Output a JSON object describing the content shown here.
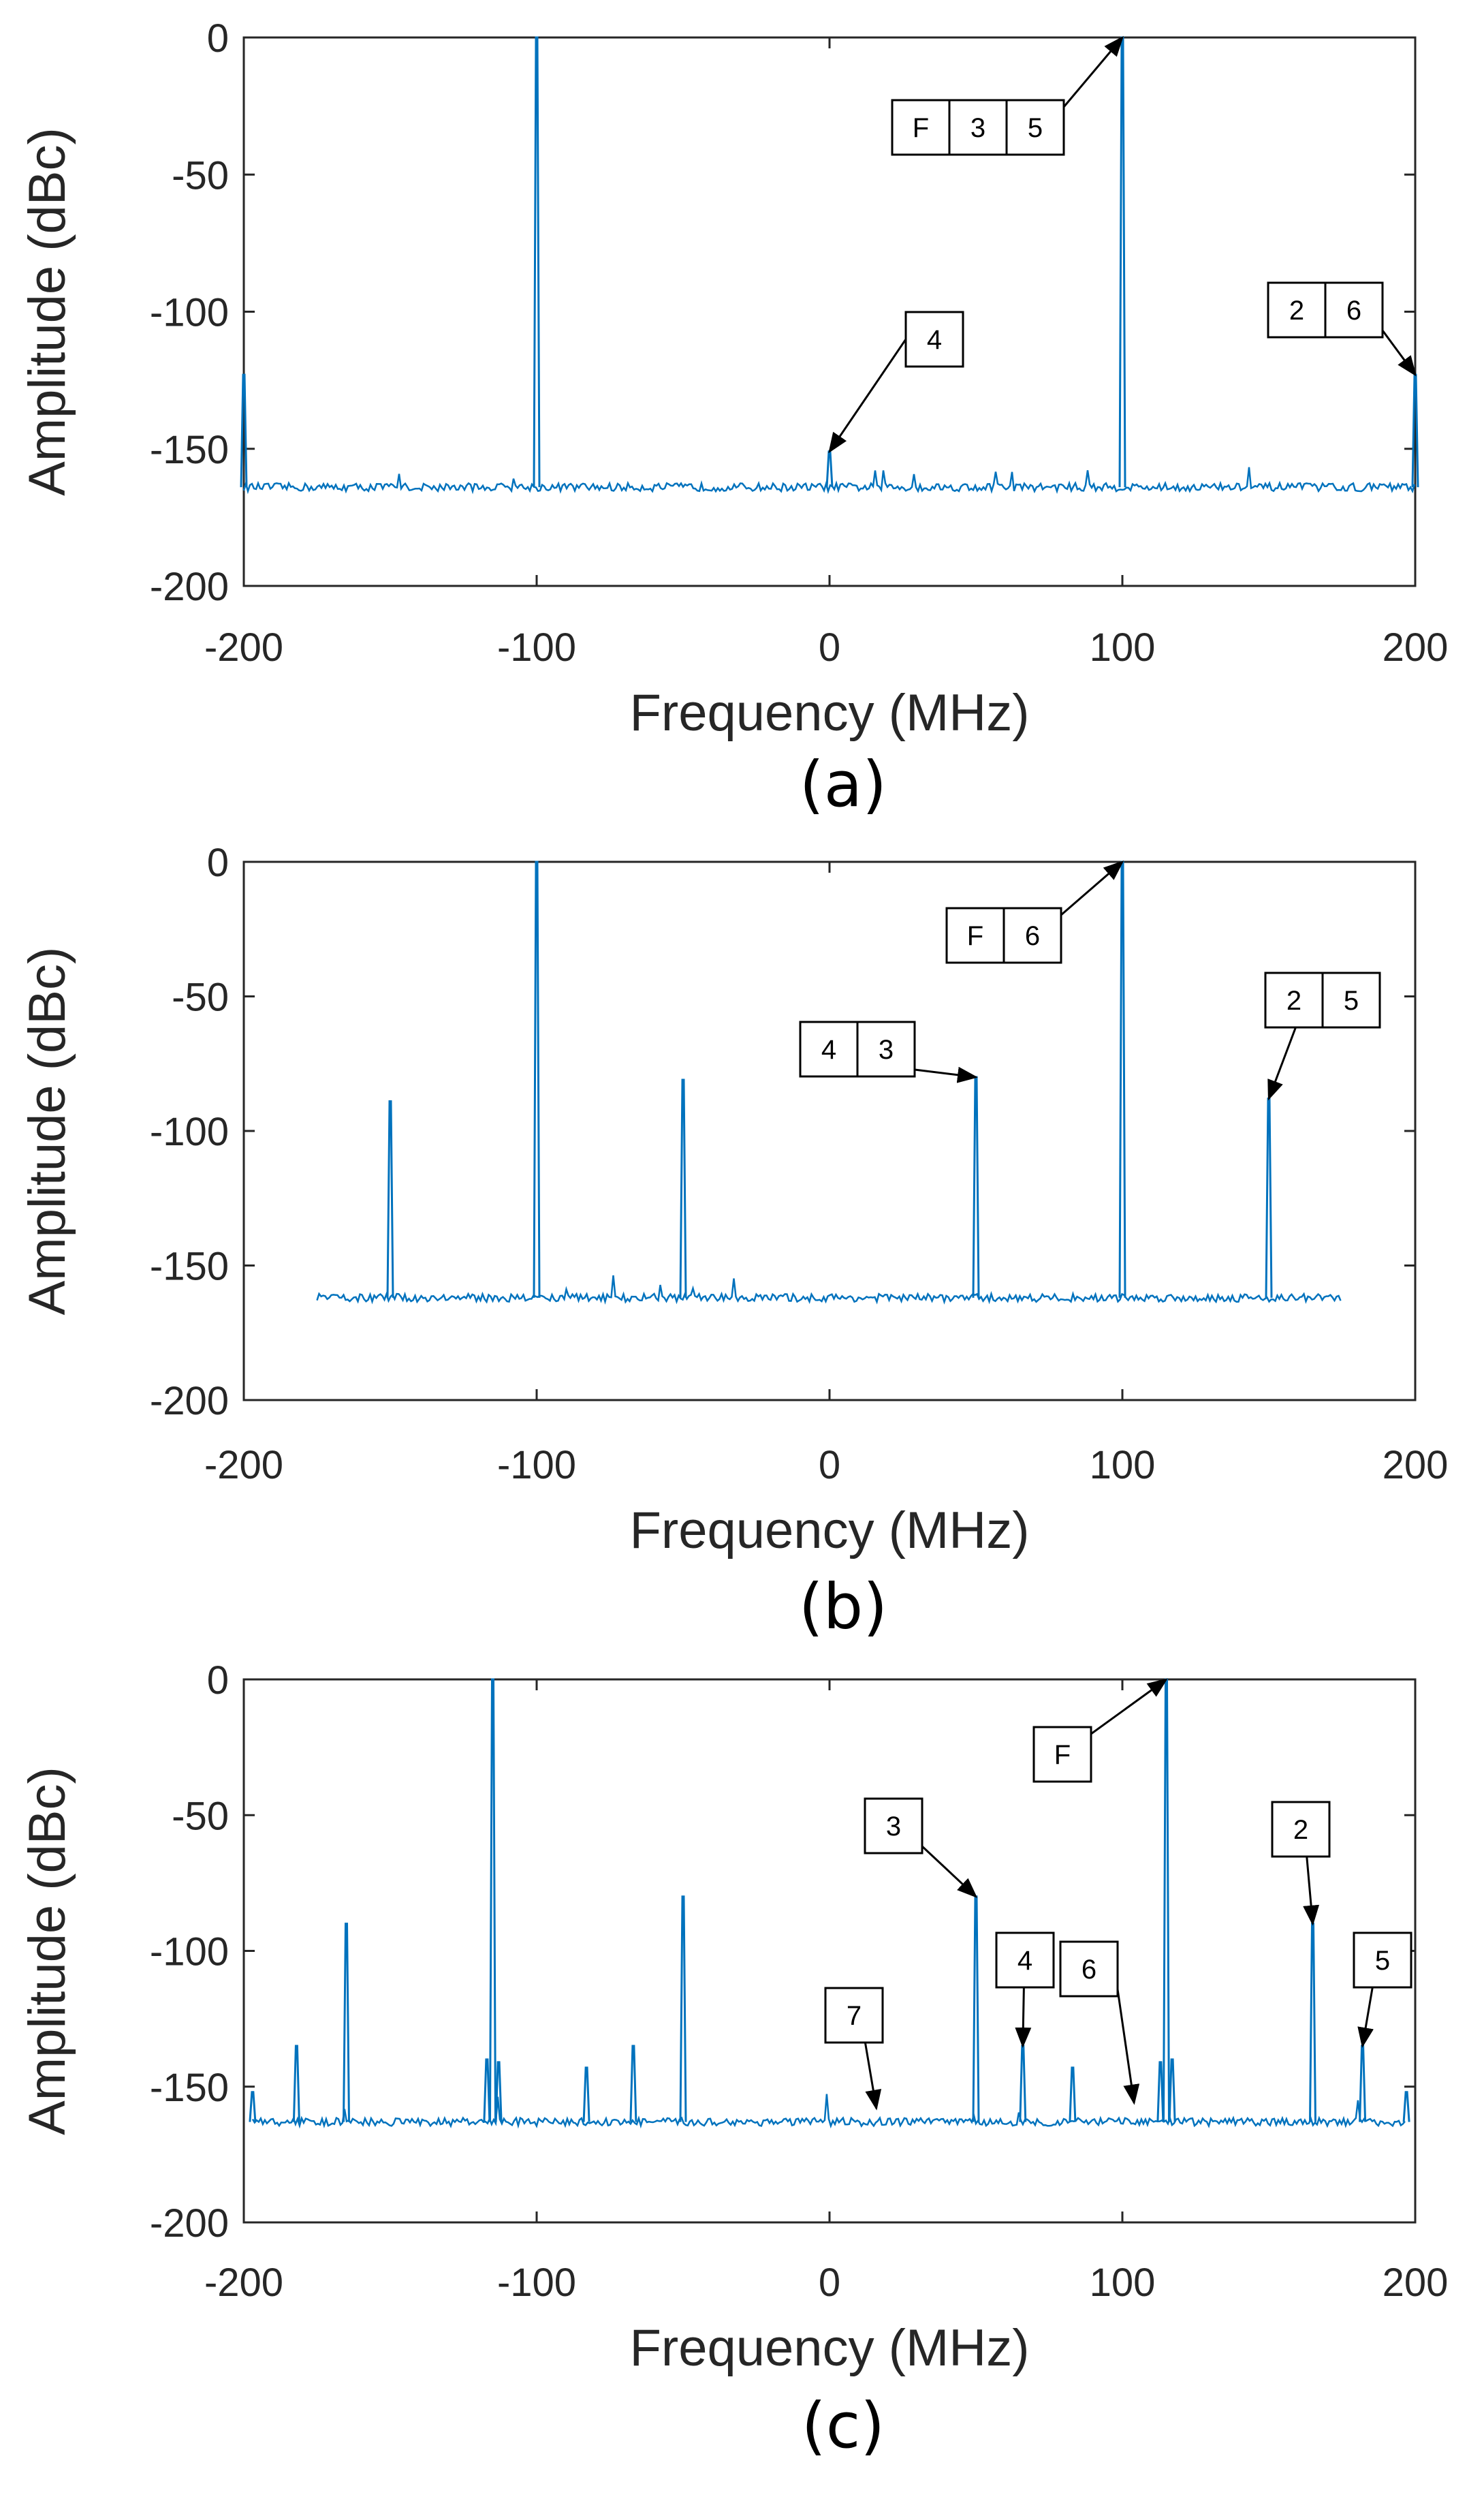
{
  "figure": {
    "panels": [
      "(a)",
      "(b)",
      "(c)"
    ]
  },
  "colors": {
    "trace": "#0072BD",
    "axis": "#262626",
    "arrow": "#000000"
  },
  "chart_data": [
    {
      "type": "line",
      "panel_label": "(a)",
      "xlabel": "Frequency (MHz)",
      "ylabel": "Amplitude (dBc)",
      "xlim": [
        -200,
        200
      ],
      "ylim": [
        -200,
        0
      ],
      "xticks": [
        "-200",
        "-100",
        "0",
        "100",
        "200"
      ],
      "yticks": [
        "0",
        "-50",
        "-100",
        "-150",
        "-200"
      ],
      "noise_floor": -164,
      "x_span": [
        -200,
        200
      ],
      "spurs": [
        {
          "x": -200,
          "y": -123
        },
        {
          "x": -100,
          "y": 0
        },
        {
          "x": 0,
          "y": -151
        },
        {
          "x": 100,
          "y": 0
        },
        {
          "x": 200,
          "y": -123
        }
      ],
      "annotations": [
        {
          "labels": [
            "F",
            "3",
            "5"
          ],
          "target": [
            100,
            0
          ]
        },
        {
          "labels": [
            "4"
          ],
          "target": [
            0,
            -151
          ]
        },
        {
          "labels": [
            "2",
            "6"
          ],
          "target": [
            200,
            -123
          ]
        }
      ]
    },
    {
      "type": "line",
      "panel_label": "(b)",
      "xlabel": "Frequency (MHz)",
      "ylabel": "Amplitude (dBc)",
      "xlim": [
        -200,
        200
      ],
      "ylim": [
        -200,
        0
      ],
      "xticks": [
        "-200",
        "-100",
        "0",
        "100",
        "200"
      ],
      "yticks": [
        "0",
        "-50",
        "-100",
        "-150",
        "-200"
      ],
      "noise_floor": -162,
      "x_span": [
        -175,
        175
      ],
      "spurs": [
        {
          "x": -150,
          "y": -89
        },
        {
          "x": -100,
          "y": 0
        },
        {
          "x": -50,
          "y": -81
        },
        {
          "x": 50,
          "y": -80
        },
        {
          "x": 100,
          "y": 0
        },
        {
          "x": 150,
          "y": -88
        }
      ],
      "annotations": [
        {
          "labels": [
            "F",
            "6"
          ],
          "target": [
            100,
            0
          ]
        },
        {
          "labels": [
            "4",
            "3"
          ],
          "target": [
            50,
            -80
          ]
        },
        {
          "labels": [
            "2",
            "5"
          ],
          "target": [
            150,
            -88
          ]
        }
      ]
    },
    {
      "type": "line",
      "panel_label": "(c)",
      "xlabel": "Frequency (MHz)",
      "ylabel": "Amplitude (dBc)",
      "xlim": [
        -200,
        200
      ],
      "ylim": [
        -200,
        0
      ],
      "xticks": [
        "-200",
        "-100",
        "0",
        "100",
        "200"
      ],
      "yticks": [
        "0",
        "-50",
        "-100",
        "-150",
        "-200"
      ],
      "noise_floor": -163,
      "x_span": [
        -197,
        197
      ],
      "spurs": [
        {
          "x": -197,
          "y": -152
        },
        {
          "x": -182,
          "y": -135
        },
        {
          "x": -165,
          "y": -90
        },
        {
          "x": -117,
          "y": -140
        },
        {
          "x": -115,
          "y": 0
        },
        {
          "x": -113,
          "y": -141
        },
        {
          "x": -83,
          "y": -143
        },
        {
          "x": -67,
          "y": -135
        },
        {
          "x": -50,
          "y": -80
        },
        {
          "x": 50,
          "y": -80
        },
        {
          "x": 66,
          "y": -135
        },
        {
          "x": 83,
          "y": -143
        },
        {
          "x": 113,
          "y": -141
        },
        {
          "x": 115,
          "y": 0
        },
        {
          "x": 117,
          "y": -140
        },
        {
          "x": 165,
          "y": -90
        },
        {
          "x": 182,
          "y": -135
        },
        {
          "x": 197,
          "y": -152
        }
      ],
      "annotations": [
        {
          "labels": [
            "F"
          ],
          "target": [
            115,
            0
          ]
        },
        {
          "labels": [
            "3"
          ],
          "target": [
            50,
            -80
          ]
        },
        {
          "labels": [
            "2"
          ],
          "target": [
            165,
            -90
          ]
        },
        {
          "labels": [
            "4"
          ],
          "target": [
            66,
            -135
          ]
        },
        {
          "labels": [
            "6"
          ],
          "target": [
            104,
            -156
          ]
        },
        {
          "labels": [
            "5"
          ],
          "target": [
            182,
            -135
          ]
        },
        {
          "labels": [
            "7"
          ],
          "target": [
            16,
            -158
          ]
        }
      ]
    }
  ]
}
